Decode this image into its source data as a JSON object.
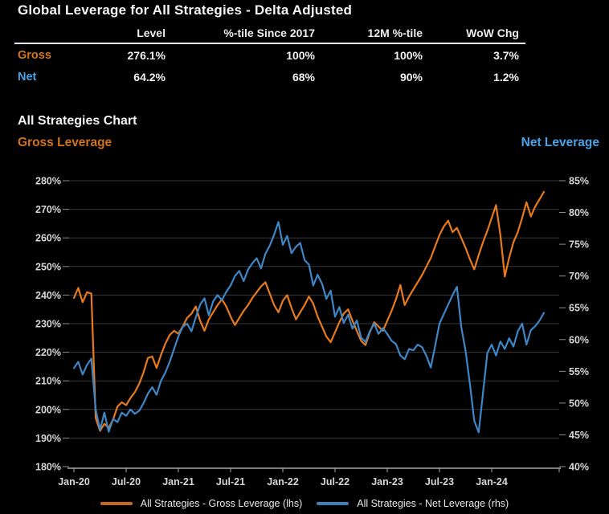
{
  "title": "Global Leverage for All Strategies - Delta Adjusted",
  "table": {
    "columns": [
      "Level",
      "%-tile Since 2017",
      "12M %-tile",
      "WoW Chg"
    ],
    "rows": [
      {
        "label": "Gross",
        "values": [
          "276.1%",
          "100%",
          "100%",
          "3.7%"
        ]
      },
      {
        "label": "Net",
        "values": [
          "64.2%",
          "68%",
          "90%",
          "1.2%"
        ]
      }
    ]
  },
  "chart_section": {
    "heading": "All Strategies Chart",
    "left_axis_title": "Gross Leverage",
    "right_axis_title": "Net Leverage"
  },
  "colors": {
    "background": "#000000",
    "gross_orange": "#d4731a",
    "gross_line": "#e87a1e",
    "net_blue": "#4aa3e8",
    "net_line": "#3e86c6",
    "gridline": "#383838",
    "axis_line": "#a8a8a8",
    "tick_text": "#d6d6d6",
    "table_text": "#f0f0f0"
  },
  "chart_data": {
    "type": "line",
    "title": "All Strategies Chart",
    "x_unit": "months since Jan-2020 (samples every 0.5 month)",
    "x_start_month": 0,
    "x_step_months": 0.5,
    "x_end_month": 54,
    "x_axis_max_months": 55.7,
    "x_tick_labels": [
      "Jan-20",
      "Jul-20",
      "Jan-21",
      "Jul-21",
      "Jan-22",
      "Jul-22",
      "Jan-23",
      "Jul-23",
      "Jan-24"
    ],
    "x_tick_positions_months": [
      0,
      6,
      12,
      18,
      24,
      30,
      36,
      42,
      48
    ],
    "left_axis": {
      "min": 180,
      "max": 280,
      "step": 10,
      "format": "percent",
      "title": "Gross Leverage"
    },
    "right_axis": {
      "min": 40,
      "max": 85,
      "step": 5,
      "format": "percent",
      "title": "Net Leverage"
    },
    "grid": "horizontal, aligned to left axis",
    "legend_position": "bottom",
    "series": [
      {
        "name": "All Strategies - Gross Leverage (lhs)",
        "axis": "left",
        "color": "#e87a1e",
        "values": [
          239,
          242.5,
          237.5,
          241,
          240.5,
          197,
          192.5,
          195,
          193.5,
          196.5,
          201,
          202.5,
          201.5,
          204,
          206,
          209,
          213,
          218,
          218.5,
          214.5,
          219,
          223,
          226,
          227.5,
          226.5,
          229,
          232,
          233.5,
          236,
          231,
          227.5,
          231.5,
          234,
          236.5,
          238.5,
          236,
          232.5,
          229.5,
          232,
          234.5,
          236.5,
          239,
          241,
          243,
          244.5,
          240.5,
          236.5,
          234,
          238,
          240,
          235.5,
          231.5,
          234,
          236.5,
          239.5,
          237,
          232.5,
          229,
          225.5,
          223.5,
          227,
          230.5,
          233.5,
          235,
          231,
          227.5,
          224,
          222.5,
          227,
          230.5,
          229,
          227.5,
          231,
          234.5,
          238.5,
          243.5,
          236.5,
          239.5,
          242,
          244.5,
          247,
          250,
          253,
          257,
          261,
          264,
          266,
          262,
          263.5,
          260,
          256.5,
          252.5,
          249,
          254,
          258.5,
          262.5,
          267,
          271.5,
          261,
          246.5,
          253,
          258.5,
          262,
          267,
          272.5,
          267.5,
          271,
          273.5,
          276.1
        ]
      },
      {
        "name": "All Strategies - Net Leverage (rhs)",
        "axis": "right",
        "color": "#3e86c6",
        "values": [
          55.5,
          56.5,
          54.5,
          56,
          57,
          49,
          45.8,
          48.5,
          45.5,
          47.5,
          47,
          48.5,
          48,
          49,
          48.3,
          48.8,
          50,
          51.5,
          52.5,
          51.3,
          53.5,
          54.8,
          56.5,
          58.5,
          60.5,
          62,
          62.5,
          61.3,
          63.5,
          65.5,
          66.5,
          63.8,
          66,
          67,
          66.2,
          67.5,
          68.5,
          70,
          70.8,
          69.2,
          71,
          72,
          72.8,
          71.2,
          73.5,
          74.8,
          76.5,
          78.5,
          74.9,
          76.3,
          73.6,
          74.6,
          75.2,
          72.5,
          71.8,
          68.5,
          70.2,
          68.8,
          66.4,
          67.7,
          63.6,
          65.1,
          62.6,
          63.9,
          61.7,
          63,
          60.3,
          59.6,
          61.3,
          62.5,
          60.9,
          61.8,
          60.9,
          59.8,
          59.3,
          57.5,
          56.9,
          58.5,
          58.3,
          59.2,
          58.8,
          57.4,
          55.6,
          59,
          62.5,
          64,
          65.5,
          67,
          68.3,
          62,
          58.2,
          53,
          47.2,
          45.4,
          51.6,
          57.9,
          59.2,
          57.5,
          59.7,
          58.5,
          60.2,
          58.9,
          61.3,
          62.5,
          59.2,
          61.5,
          62.1,
          63,
          64.2
        ]
      }
    ]
  }
}
